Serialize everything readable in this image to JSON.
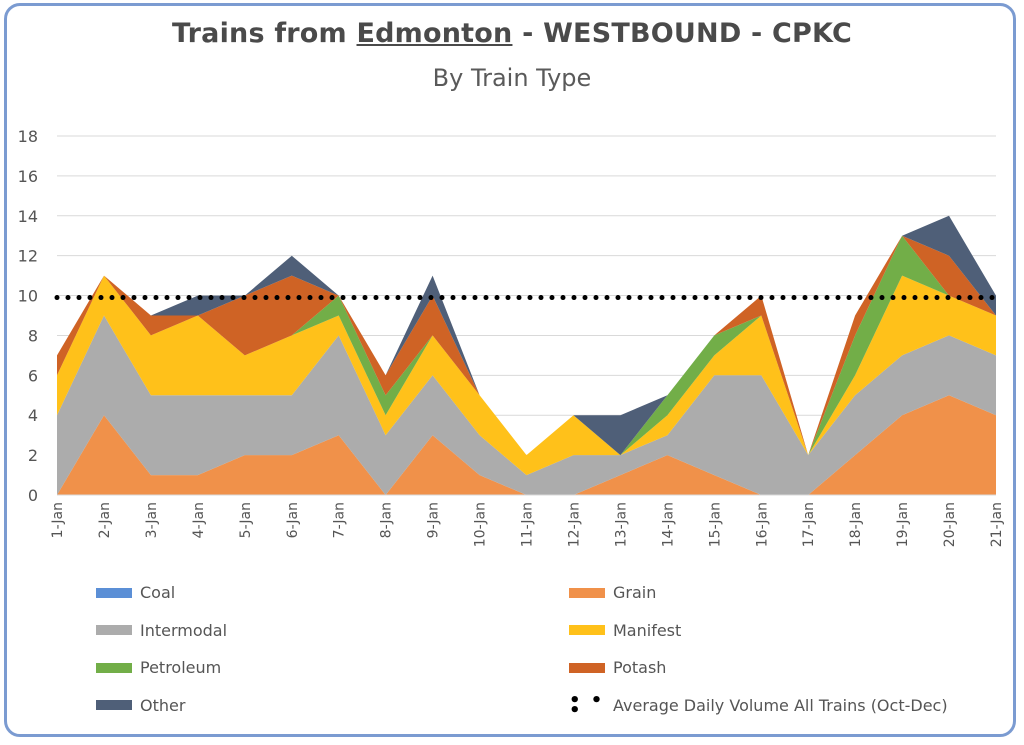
{
  "chart_data": {
    "type": "area",
    "title_parts": [
      "Trains from ",
      "Edmonton",
      " - WESTBOUND - CPKC"
    ],
    "subtitle": "By Train Type",
    "xlabel": "",
    "ylabel": "",
    "ylim": [
      0,
      18
    ],
    "yticks": [
      0,
      2,
      4,
      6,
      8,
      10,
      12,
      14,
      16,
      18
    ],
    "grid": true,
    "legend_position": "bottom",
    "categories": [
      "1-Jan",
      "2-Jan",
      "3-Jan",
      "4-Jan",
      "5-Jan",
      "6-Jan",
      "7-Jan",
      "8-Jan",
      "9-Jan",
      "10-Jan",
      "11-Jan",
      "12-Jan",
      "13-Jan",
      "14-Jan",
      "15-Jan",
      "16-Jan",
      "17-Jan",
      "18-Jan",
      "19-Jan",
      "20-Jan",
      "21-Jan"
    ],
    "stacked": true,
    "series": [
      {
        "name": "Coal",
        "color": "#5b8fd6",
        "values": [
          0,
          0,
          0,
          0,
          0,
          0,
          0,
          0,
          0,
          0,
          0,
          0,
          0,
          0,
          0,
          0,
          0,
          0,
          0,
          0,
          0
        ]
      },
      {
        "name": "Grain",
        "color": "#f0914a",
        "values": [
          0,
          4,
          1,
          1,
          2,
          2,
          3,
          0,
          3,
          1,
          0,
          0,
          1,
          2,
          1,
          0,
          0,
          2,
          4,
          5,
          4
        ]
      },
      {
        "name": "Intermodal",
        "color": "#acacac",
        "values": [
          4,
          5,
          4,
          4,
          3,
          3,
          5,
          3,
          3,
          2,
          1,
          2,
          1,
          1,
          5,
          6,
          2,
          3,
          3,
          3,
          3
        ]
      },
      {
        "name": "Manifest",
        "color": "#ffc11a",
        "values": [
          2,
          2,
          3,
          4,
          2,
          3,
          1,
          1,
          2,
          2,
          1,
          2,
          0,
          1,
          1,
          3,
          0,
          1,
          4,
          2,
          2
        ]
      },
      {
        "name": "Petroleum",
        "color": "#72ae48",
        "values": [
          0,
          0,
          0,
          0,
          0,
          0,
          1,
          1,
          0,
          0,
          0,
          0,
          0,
          1,
          1,
          0,
          0,
          2,
          2,
          0,
          0
        ]
      },
      {
        "name": "Potash",
        "color": "#cf6325",
        "values": [
          1,
          0,
          1,
          0,
          3,
          3,
          0,
          1,
          2,
          0,
          0,
          0,
          0,
          0,
          0,
          1,
          0,
          1,
          0,
          2,
          0
        ]
      },
      {
        "name": "Other",
        "color": "#4f5f78",
        "values": [
          0,
          0,
          0,
          1,
          0,
          1,
          0,
          0,
          1,
          0,
          0,
          0,
          2,
          0,
          0,
          0,
          0,
          0,
          0,
          2,
          1
        ]
      }
    ],
    "average_line": {
      "name": "Average Daily Volume All Trains (Oct-Dec)",
      "value": 9.9,
      "color": "#000000"
    }
  }
}
